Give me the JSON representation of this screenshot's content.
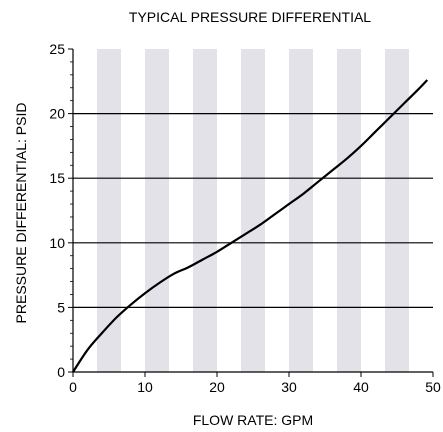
{
  "chart_data": {
    "type": "line",
    "title": "TYPICAL PRESSURE DIFFERENTIAL",
    "xlabel": "FLOW RATE: GPM",
    "ylabel": "PRESSURE DIFFERENTIAL: PSID",
    "xlim": [
      0,
      50
    ],
    "ylim": [
      0,
      25
    ],
    "x_ticks": [
      0,
      10,
      20,
      30,
      40,
      50
    ],
    "y_ticks": [
      0,
      5,
      10,
      15,
      20,
      25
    ],
    "grid": "horizontal lines at y ticks; alternating vertical shaded bands",
    "band_color": "#e3e2e8",
    "line_color": "#000000",
    "series": [
      {
        "x": [
          0,
          2,
          4,
          6,
          8,
          10,
          12,
          14,
          16,
          18,
          20,
          22,
          24,
          26,
          28,
          30,
          32,
          34,
          36,
          38,
          40,
          42,
          44,
          46,
          48,
          49.2
        ],
        "values": [
          0,
          1.7,
          3.0,
          4.2,
          5.2,
          6.1,
          6.9,
          7.6,
          8.1,
          8.7,
          9.3,
          10.0,
          10.7,
          11.4,
          12.2,
          13.0,
          13.8,
          14.7,
          15.6,
          16.5,
          17.5,
          18.6,
          19.7,
          20.8,
          21.9,
          22.6
        ]
      }
    ]
  }
}
